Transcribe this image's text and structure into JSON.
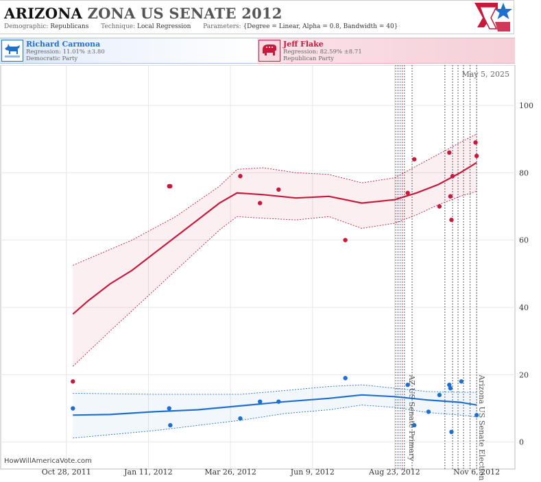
{
  "header": {
    "state": "ARIZONA",
    "race": "ZONA US SENATE 2012",
    "demographic_label": "Demographic:",
    "demographic_value": "Republicans",
    "technique_label": "Technique:",
    "technique_value": "Local Regression",
    "parameters_label": "Parameters:",
    "parameters_value": "{Degree = Linear, Alpha = 0.8, Bandwidth = 40}"
  },
  "candidates": {
    "dem": {
      "name": "Richard Carmona",
      "regression": "Regression: 11.01% ±3.80",
      "party": "Democratic Party",
      "icon": "donkey-icon",
      "color": "#1f6fd0"
    },
    "rep": {
      "name": "Jeff Flake",
      "regression": "Regression: 82.59% ±8.71",
      "party": "Republican Party",
      "icon": "elephant-icon",
      "color": "#c8183c"
    }
  },
  "footer": {
    "source": "HowWillAmericaVote.com"
  },
  "chart_data": {
    "type": "scatter",
    "current_date_label": "May 5, 2025",
    "x_tick_labels": [
      "Oct 28, 2011",
      "Jan 11, 2012",
      "Mar 26, 2012",
      "Jun 9, 2012",
      "Aug 23, 2012",
      "Nov 6, 2012"
    ],
    "x_tick_days": [
      0,
      75,
      150,
      225,
      300,
      375
    ],
    "x_range_days": [
      -60,
      410
    ],
    "ylim": [
      -8,
      112
    ],
    "y_ticks": [
      0,
      20,
      40,
      60,
      80,
      100
    ],
    "grid": true,
    "events": [
      {
        "label": "AZ US Senate Primary",
        "day": 311
      },
      {
        "label": "Arizona US Senate Election",
        "day": 375
      }
    ],
    "poll_lines_days": [
      301,
      303,
      309,
      316,
      346,
      353,
      358,
      363,
      369,
      375
    ],
    "series": [
      {
        "name": "Jeff Flake",
        "color": "#c8183c",
        "points": [
          [
            6,
            18
          ],
          [
            94,
            76
          ],
          [
            95,
            76
          ],
          [
            159,
            79
          ],
          [
            177,
            71
          ],
          [
            194,
            75
          ],
          [
            255,
            60
          ],
          [
            312,
            74
          ],
          [
            318,
            84
          ],
          [
            341,
            70
          ],
          [
            350,
            86
          ],
          [
            351,
            73
          ],
          [
            352,
            66
          ],
          [
            353,
            79
          ],
          [
            374,
            89
          ],
          [
            375,
            85
          ]
        ],
        "fit": [
          [
            6,
            38
          ],
          [
            20,
            42
          ],
          [
            40,
            47
          ],
          [
            60,
            51
          ],
          [
            80,
            56
          ],
          [
            100,
            61
          ],
          [
            120,
            66
          ],
          [
            140,
            71
          ],
          [
            156,
            74
          ],
          [
            180,
            73.5
          ],
          [
            210,
            72.5
          ],
          [
            240,
            73
          ],
          [
            270,
            71
          ],
          [
            300,
            72
          ],
          [
            320,
            74
          ],
          [
            340,
            76.5
          ],
          [
            360,
            80
          ],
          [
            375,
            83
          ]
        ],
        "band_upper": [
          [
            6,
            52.5
          ],
          [
            60,
            60
          ],
          [
            100,
            67
          ],
          [
            140,
            76
          ],
          [
            156,
            81
          ],
          [
            180,
            81.5
          ],
          [
            210,
            80
          ],
          [
            240,
            79.5
          ],
          [
            270,
            77
          ],
          [
            300,
            78.5
          ],
          [
            320,
            82
          ],
          [
            340,
            85.5
          ],
          [
            360,
            89
          ],
          [
            375,
            91.5
          ]
        ],
        "band_lower": [
          [
            6,
            22.5
          ],
          [
            40,
            33
          ],
          [
            80,
            45
          ],
          [
            120,
            57
          ],
          [
            140,
            63
          ],
          [
            156,
            67
          ],
          [
            180,
            66.5
          ],
          [
            210,
            66
          ],
          [
            240,
            67
          ],
          [
            270,
            63.5
          ],
          [
            300,
            65
          ],
          [
            320,
            67.5
          ],
          [
            340,
            70.5
          ],
          [
            360,
            73
          ],
          [
            375,
            74.5
          ]
        ]
      },
      {
        "name": "Richard Carmona",
        "color": "#1f6fd0",
        "points": [
          [
            6,
            10
          ],
          [
            94,
            10
          ],
          [
            95,
            5
          ],
          [
            159,
            7
          ],
          [
            177,
            12
          ],
          [
            194,
            12
          ],
          [
            255,
            19
          ],
          [
            312,
            17
          ],
          [
            318,
            5
          ],
          [
            331,
            9
          ],
          [
            341,
            14
          ],
          [
            350,
            17
          ],
          [
            351,
            16
          ],
          [
            352,
            3
          ],
          [
            361,
            18
          ],
          [
            375,
            8
          ]
        ],
        "fit": [
          [
            6,
            8
          ],
          [
            40,
            8.2
          ],
          [
            80,
            9
          ],
          [
            120,
            9.6
          ],
          [
            160,
            10.8
          ],
          [
            200,
            12
          ],
          [
            240,
            13
          ],
          [
            270,
            14
          ],
          [
            300,
            13.5
          ],
          [
            330,
            12.5
          ],
          [
            360,
            11.8
          ],
          [
            375,
            11
          ]
        ],
        "band_upper": [
          [
            6,
            14.5
          ],
          [
            80,
            14.2
          ],
          [
            160,
            14.2
          ],
          [
            200,
            15.3
          ],
          [
            240,
            16.5
          ],
          [
            270,
            17
          ],
          [
            300,
            16
          ],
          [
            330,
            15
          ],
          [
            360,
            14.8
          ],
          [
            375,
            14.8
          ]
        ],
        "band_lower": [
          [
            6,
            1.2
          ],
          [
            80,
            3.4
          ],
          [
            160,
            6.5
          ],
          [
            200,
            8.5
          ],
          [
            240,
            9.6
          ],
          [
            270,
            11
          ],
          [
            300,
            10.3
          ],
          [
            330,
            8.8
          ],
          [
            360,
            8
          ],
          [
            375,
            7.5
          ]
        ]
      }
    ]
  }
}
